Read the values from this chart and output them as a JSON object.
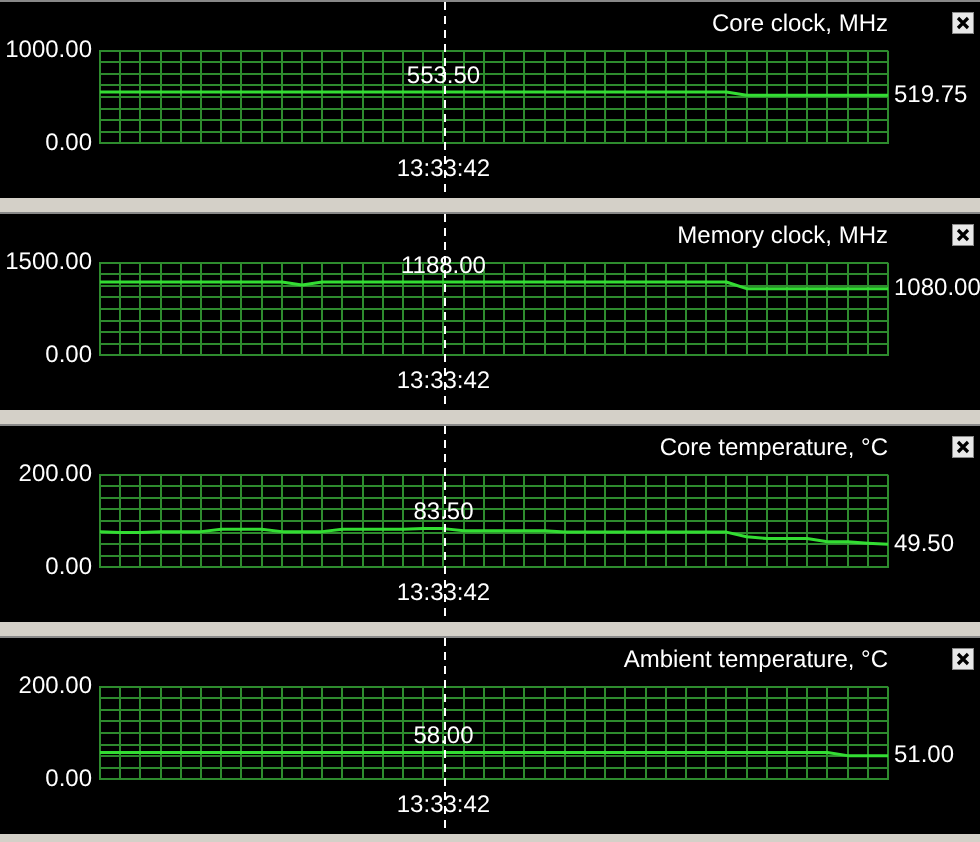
{
  "chart_data": [
    {
      "type": "line",
      "title": "Core clock, MHz",
      "categories": [
        null,
        null,
        null,
        null,
        null,
        null,
        null,
        null,
        null,
        null,
        null,
        null,
        null,
        null,
        null,
        null,
        null,
        "13:33:42",
        null,
        null,
        null,
        null,
        null,
        null,
        null,
        null,
        null,
        null,
        null,
        null,
        null,
        null,
        null,
        null,
        null,
        null,
        null,
        null,
        null,
        null
      ],
      "series": [
        {
          "color": "#33dd33",
          "values": [
            553.5,
            553.5,
            553.5,
            553.5,
            553.5,
            553.5,
            553.5,
            553.5,
            553.5,
            553.5,
            553.5,
            553.5,
            553.5,
            553.5,
            553.5,
            553.5,
            553.5,
            553.5,
            553.5,
            553.5,
            553.5,
            553.5,
            553.5,
            553.5,
            553.5,
            553.5,
            553.5,
            553.5,
            553.5,
            553.5,
            553.5,
            553.5,
            519.75,
            519.75,
            519.75,
            519.75,
            519.75,
            519.75,
            519.75,
            519.75
          ]
        }
      ],
      "ylim": [
        0,
        1000
      ],
      "yticks": [
        {
          "value": 0,
          "label": "0.00"
        },
        {
          "value": 125,
          "label": null
        },
        {
          "value": 250,
          "label": null
        },
        {
          "value": 375,
          "label": null
        },
        {
          "value": 500,
          "label": null
        },
        {
          "value": 625,
          "label": null
        },
        {
          "value": 750,
          "label": null
        },
        {
          "value": 875,
          "label": null
        },
        {
          "value": 1000,
          "label": "1000.00"
        }
      ],
      "grid": true,
      "legend": false,
      "marker": "none",
      "line_style": "solid",
      "ref_lines": [
        {
          "axis": "x",
          "value": "13:33:42",
          "color": "#ffffff",
          "line_style": "dashed"
        }
      ],
      "annotations": [
        {
          "text": "553.50",
          "x": "13:33:42",
          "y": 553.5
        },
        "519.75"
      ]
    },
    {
      "type": "line",
      "title": "Memory clock, MHz",
      "categories": [
        null,
        null,
        null,
        null,
        null,
        null,
        null,
        null,
        null,
        null,
        null,
        null,
        null,
        null,
        null,
        null,
        null,
        "13:33:42",
        null,
        null,
        null,
        null,
        null,
        null,
        null,
        null,
        null,
        null,
        null,
        null,
        null,
        null,
        null,
        null,
        null,
        null,
        null,
        null,
        null,
        null
      ],
      "series": [
        {
          "color": "#33dd33",
          "values": [
            1188,
            1188,
            1188,
            1188,
            1188,
            1188,
            1188,
            1188,
            1188,
            1188,
            1140,
            1188,
            1188,
            1188,
            1188,
            1188,
            1188,
            1188,
            1188,
            1188,
            1188,
            1188,
            1188,
            1188,
            1188,
            1188,
            1188,
            1188,
            1188,
            1188,
            1188,
            1188,
            1080,
            1080,
            1080,
            1080,
            1080,
            1080,
            1080,
            1080
          ]
        }
      ],
      "ylim": [
        0,
        1500
      ],
      "yticks": [
        {
          "value": 0,
          "label": "0.00"
        },
        {
          "value": 187.5,
          "label": null
        },
        {
          "value": 375,
          "label": null
        },
        {
          "value": 562.5,
          "label": null
        },
        {
          "value": 750,
          "label": null
        },
        {
          "value": 937.5,
          "label": null
        },
        {
          "value": 1125,
          "label": null
        },
        {
          "value": 1312.5,
          "label": null
        },
        {
          "value": 1500,
          "label": "1500.00"
        }
      ],
      "grid": true,
      "legend": false,
      "marker": "none",
      "line_style": "solid",
      "ref_lines": [
        {
          "axis": "x",
          "value": "13:33:42",
          "color": "#ffffff",
          "line_style": "dashed"
        }
      ],
      "annotations": [
        {
          "text": "1188.00",
          "x": "13:33:42",
          "y": 1188
        },
        "1080.00"
      ]
    },
    {
      "type": "line",
      "title": "Core temperature, °C",
      "categories": [
        null,
        null,
        null,
        null,
        null,
        null,
        null,
        null,
        null,
        null,
        null,
        null,
        null,
        null,
        null,
        null,
        null,
        "13:33:42",
        null,
        null,
        null,
        null,
        null,
        null,
        null,
        null,
        null,
        null,
        null,
        null,
        null,
        null,
        null,
        null,
        null,
        null,
        null,
        null,
        null,
        null
      ],
      "series": [
        {
          "color": "#33dd33",
          "values": [
            77,
            75,
            75,
            77,
            77,
            77,
            82,
            82,
            82,
            77,
            77,
            77,
            82,
            82,
            82,
            82,
            83.5,
            83.5,
            79,
            79,
            79,
            79,
            79,
            76,
            76,
            76,
            76,
            76,
            76,
            76,
            76,
            76,
            66,
            62,
            62,
            62,
            55,
            55,
            52,
            49.5
          ]
        }
      ],
      "ylim": [
        0,
        200
      ],
      "yticks": [
        {
          "value": 0,
          "label": "0.00"
        },
        {
          "value": 25,
          "label": null
        },
        {
          "value": 50,
          "label": null
        },
        {
          "value": 75,
          "label": null
        },
        {
          "value": 100,
          "label": null
        },
        {
          "value": 125,
          "label": null
        },
        {
          "value": 150,
          "label": null
        },
        {
          "value": 175,
          "label": null
        },
        {
          "value": 200,
          "label": "200.00"
        }
      ],
      "grid": true,
      "legend": false,
      "marker": "none",
      "line_style": "solid",
      "ref_lines": [
        {
          "axis": "x",
          "value": "13:33:42",
          "color": "#ffffff",
          "line_style": "dashed"
        }
      ],
      "annotations": [
        {
          "text": "83.50",
          "x": "13:33:42",
          "y": 83.5
        },
        "49.50"
      ]
    },
    {
      "type": "line",
      "title": "Ambient temperature, °C",
      "categories": [
        null,
        null,
        null,
        null,
        null,
        null,
        null,
        null,
        null,
        null,
        null,
        null,
        null,
        null,
        null,
        null,
        null,
        "13:33:42",
        null,
        null,
        null,
        null,
        null,
        null,
        null,
        null,
        null,
        null,
        null,
        null,
        null,
        null,
        null,
        null,
        null,
        null,
        null,
        null,
        null,
        null
      ],
      "series": [
        {
          "color": "#33dd33",
          "values": [
            58,
            58,
            58,
            58,
            58,
            58,
            58,
            58,
            58,
            58,
            58,
            58,
            58,
            58,
            58,
            58,
            58,
            58,
            58,
            58,
            58,
            58,
            58,
            58,
            58,
            58,
            58,
            58,
            58,
            58,
            58,
            58,
            58,
            58,
            58,
            58,
            58,
            51,
            51,
            51
          ]
        }
      ],
      "ylim": [
        0,
        200
      ],
      "yticks": [
        {
          "value": 0,
          "label": "0.00"
        },
        {
          "value": 25,
          "label": null
        },
        {
          "value": 50,
          "label": null
        },
        {
          "value": 75,
          "label": null
        },
        {
          "value": 100,
          "label": null
        },
        {
          "value": 125,
          "label": null
        },
        {
          "value": 150,
          "label": null
        },
        {
          "value": 175,
          "label": null
        },
        {
          "value": 200,
          "label": "200.00"
        }
      ],
      "grid": true,
      "legend": false,
      "marker": "none",
      "line_style": "solid",
      "ref_lines": [
        {
          "axis": "x",
          "value": "13:33:42",
          "color": "#ffffff",
          "line_style": "dashed"
        }
      ],
      "annotations": [
        {
          "text": "58.00",
          "x": "13:33:42",
          "y": 58
        },
        "51.00"
      ]
    }
  ]
}
